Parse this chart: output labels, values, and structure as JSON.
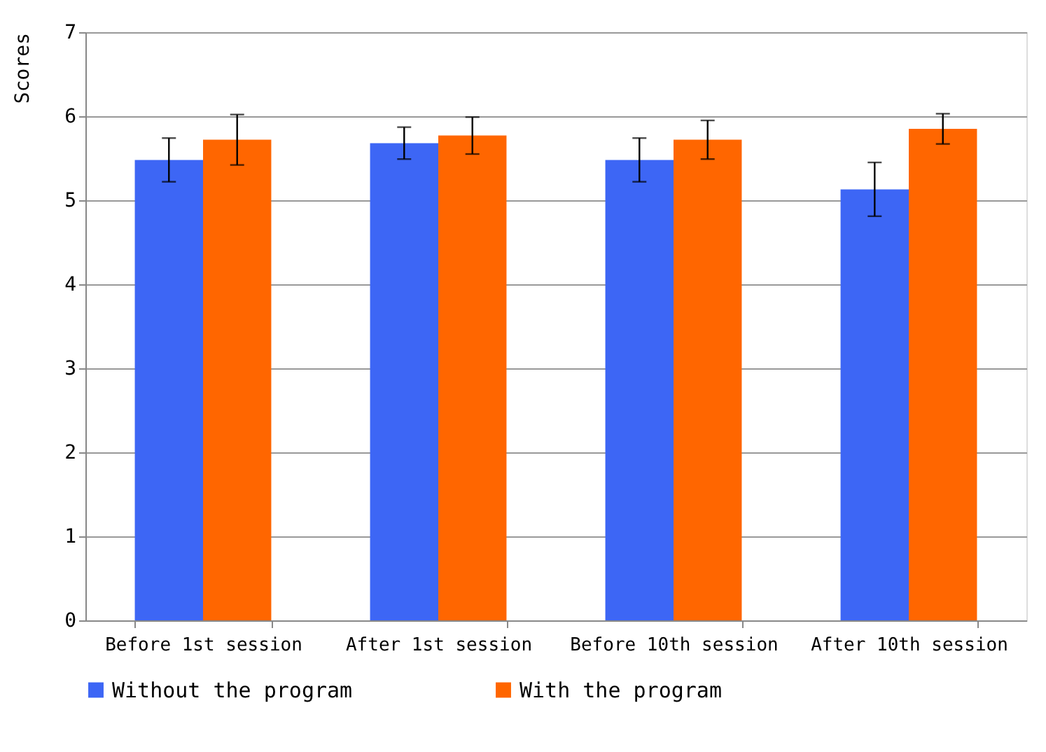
{
  "chart_data": {
    "type": "bar",
    "ylabel": "Scores",
    "categories": [
      "Before 1st session",
      "After 1st session",
      "Before 10th session",
      "After 10th session"
    ],
    "series": [
      {
        "name": "Without the program",
        "color": "#3d66f5",
        "values": [
          5.48,
          5.68,
          5.48,
          5.13
        ],
        "errors": [
          0.26,
          0.19,
          0.26,
          0.32
        ]
      },
      {
        "name": "With the program",
        "color": "#ff6600",
        "values": [
          5.72,
          5.77,
          5.72,
          5.85
        ],
        "errors": [
          0.3,
          0.22,
          0.23,
          0.18
        ]
      }
    ],
    "ylim": [
      0,
      7
    ],
    "yticks": [
      0,
      1,
      2,
      3,
      4,
      5,
      6,
      7
    ],
    "grid": "y",
    "legend": "bottom"
  }
}
